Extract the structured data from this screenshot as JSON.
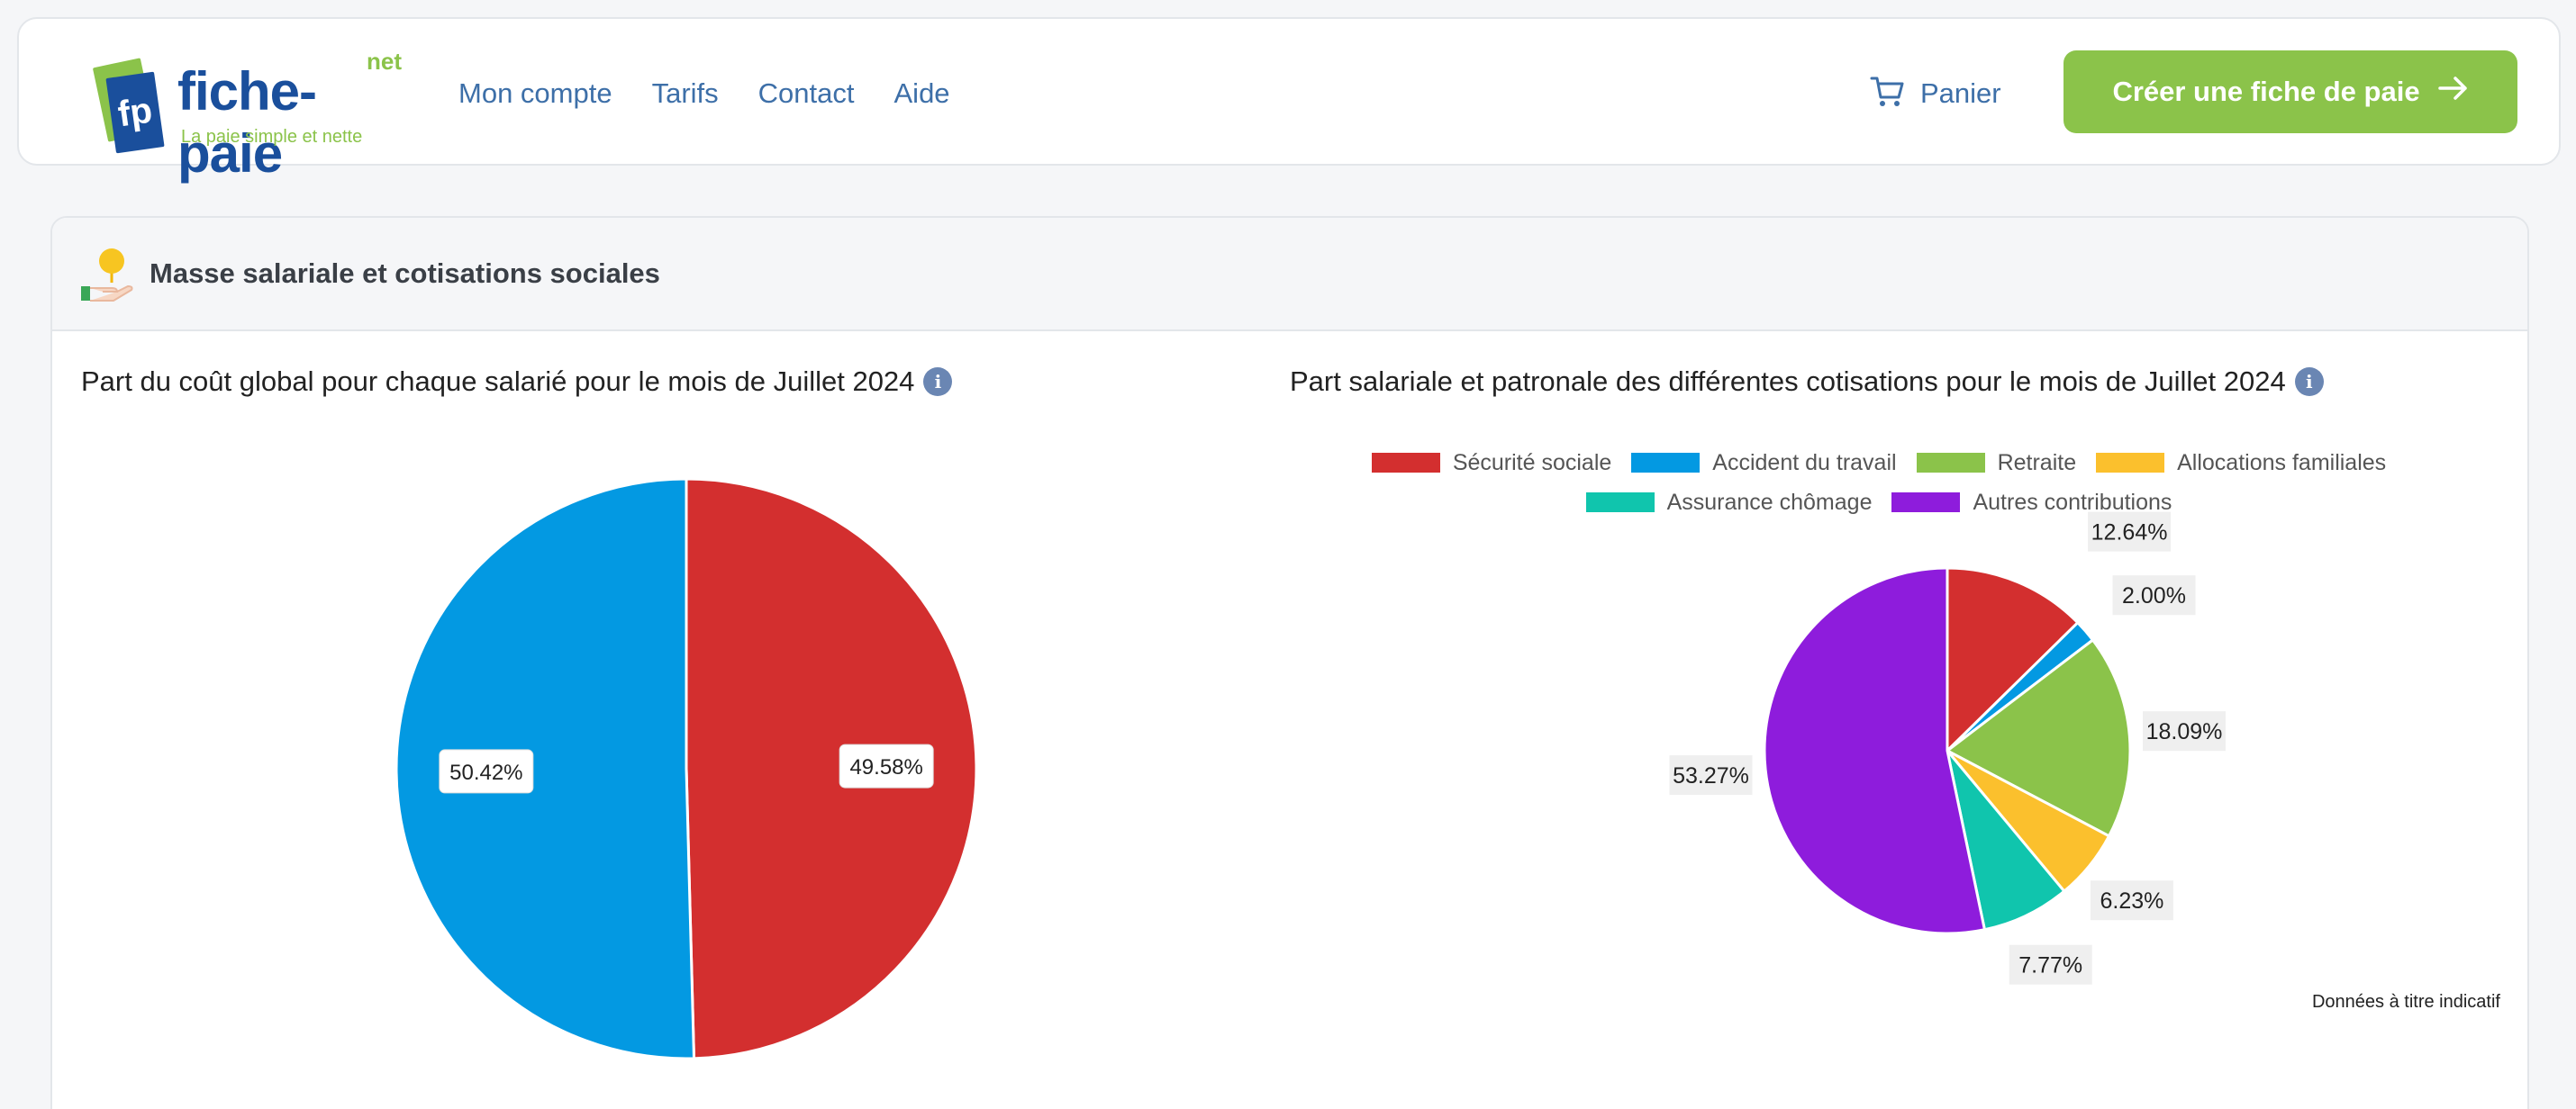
{
  "brand": {
    "name": "fiche-paie",
    "net": "net",
    "mark": "fp",
    "tagline": "La paie simple et nette"
  },
  "nav": {
    "links": [
      "Mon compte",
      "Tarifs",
      "Contact",
      "Aide"
    ],
    "cart_label": "Panier",
    "cta_label": "Créer une fiche de paie"
  },
  "section": {
    "title": "Masse salariale et cotisations sociales",
    "note": "Données à titre indicatif"
  },
  "colors": {
    "accent_green": "#8bc34a",
    "brand_blue": "#1a4f9c",
    "link_blue": "#3d6fa8"
  },
  "chart_data": [
    {
      "type": "pie",
      "title": "Part du coût global pour chaque salarié pour le mois de Juillet 2024",
      "series": [
        {
          "label": "49.58%",
          "value": 49.58,
          "color": "#d32f2f"
        },
        {
          "label": "50.42%",
          "value": 50.42,
          "color": "#0399e2"
        }
      ]
    },
    {
      "type": "pie",
      "title": "Part salariale et patronale des différentes cotisations pour le mois de Juillet 2024",
      "legend_position": "top",
      "series": [
        {
          "name": "Sécurité sociale",
          "label": "12.64%",
          "value": 12.64,
          "color": "#d32f2f"
        },
        {
          "name": "Accident du travail",
          "label": "2.00%",
          "value": 2.0,
          "color": "#0399e2"
        },
        {
          "name": "Retraite",
          "label": "18.09%",
          "value": 18.09,
          "color": "#8bc34a"
        },
        {
          "name": "Allocations familiales",
          "label": "6.23%",
          "value": 6.23,
          "color": "#fbc02d"
        },
        {
          "name": "Assurance chômage",
          "label": "7.77%",
          "value": 7.77,
          "color": "#10c5ad"
        },
        {
          "name": "Autres contributions",
          "label": "53.27%",
          "value": 53.27,
          "color": "#8e1cdc"
        }
      ]
    }
  ]
}
